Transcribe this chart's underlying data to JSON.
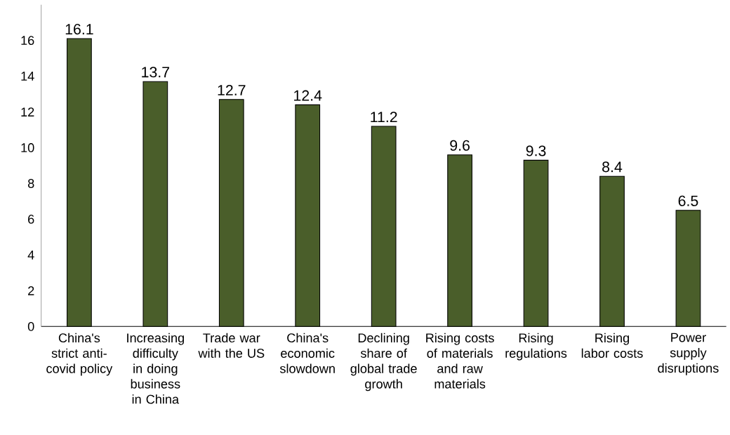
{
  "chart_data": {
    "type": "bar",
    "categories": [
      "China's strict anti-covid policy",
      "Increasing difficulty in doing business in China",
      "Trade war with the US",
      "China's economic slowdown",
      "Declining share of global trade growth",
      "Rising costs of materials and raw materials",
      "Rising regulations",
      "Rising labor costs",
      "Power supply disruptions"
    ],
    "values": [
      16.1,
      13.7,
      12.7,
      12.4,
      11.2,
      9.6,
      9.3,
      8.4,
      6.5
    ],
    "color": "#4a5e2a",
    "ylim": [
      0,
      18
    ],
    "yticks": [
      0,
      2,
      4,
      6,
      8,
      10,
      12,
      14,
      16
    ],
    "data_labels": true
  }
}
